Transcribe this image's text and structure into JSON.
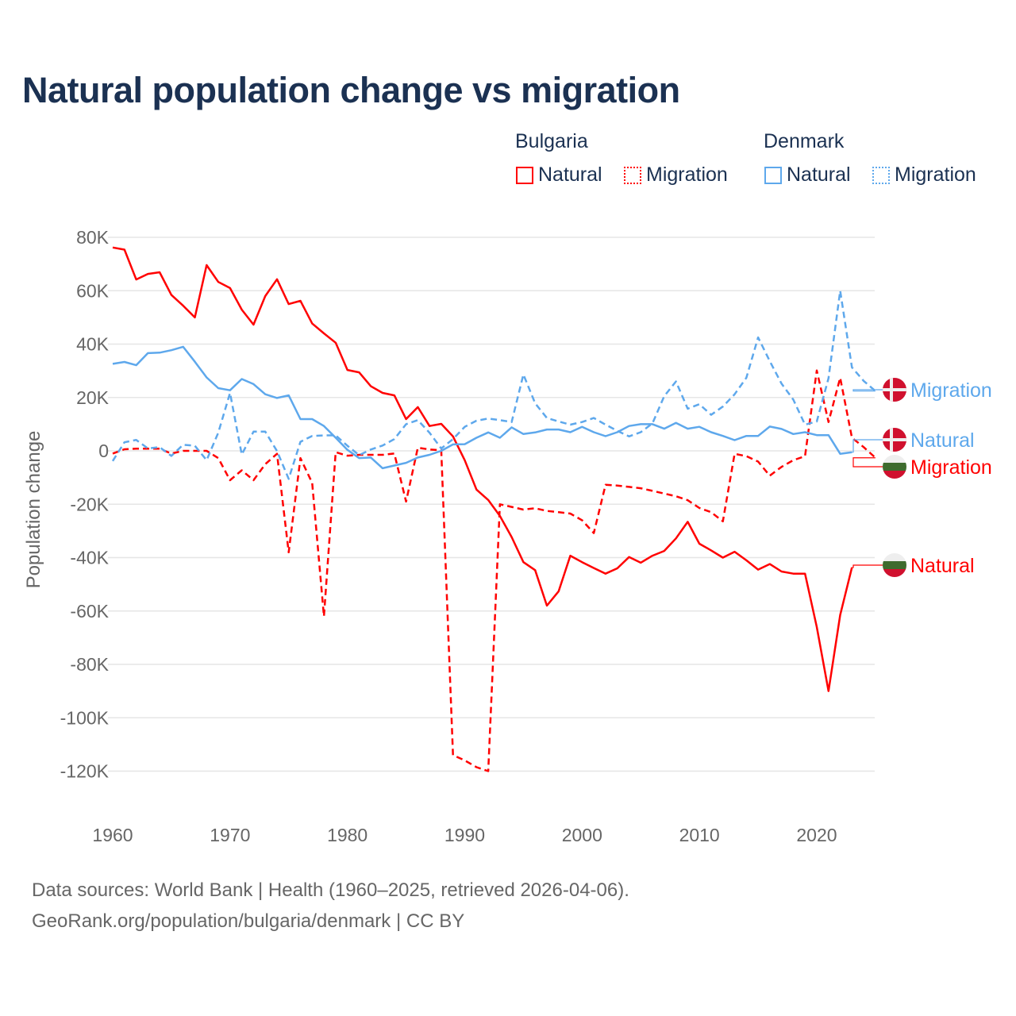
{
  "colors": {
    "bulgaria": "#ff0000",
    "denmark": "#5ea8ec",
    "title": "#1b3152"
  },
  "legend": {
    "bulgaria": {
      "title": "Bulgaria",
      "natural": "Natural",
      "migration": "Migration"
    },
    "denmark": {
      "title": "Denmark",
      "natural": "Natural",
      "migration": "Migration"
    }
  },
  "end_labels": {
    "dk_migration": "Migration",
    "dk_natural": "Natural",
    "bg_migration": "Migration",
    "bg_natural": "Natural"
  },
  "footer": {
    "line1": "Data sources: World Bank | Health (1960–2025, retrieved 2026-04-06).",
    "line2": "GeoRank.org/population/bulgaria/denmark | CC BY"
  },
  "chart_data": {
    "type": "line",
    "title": "Natural population change vs migration",
    "xlabel": "",
    "ylabel": "Population change",
    "xlim": [
      1960,
      2025
    ],
    "ylim": [
      -130000,
      85000
    ],
    "x_ticks": [
      1960,
      1970,
      1980,
      1990,
      2000,
      2010,
      2020
    ],
    "x_tick_labels": [
      "1960",
      "1970",
      "1980",
      "1990",
      "2000",
      "2010",
      "2020"
    ],
    "y_ticks": [
      80000,
      60000,
      40000,
      20000,
      0,
      -20000,
      -40000,
      -60000,
      -80000,
      -100000,
      -120000
    ],
    "y_tick_labels": [
      "80K",
      "60K",
      "40K",
      "20K",
      "0",
      "-20K",
      "-40K",
      "-60K",
      "-80K",
      "-100K",
      "-120K"
    ],
    "grid": true,
    "legend_position": "top-right",
    "series": [
      {
        "name": "Bulgaria Natural",
        "country": "bulgaria",
        "style": "solid",
        "start": 1960,
        "values": [
          76200,
          75400,
          64200,
          66300,
          66900,
          58400,
          54400,
          50000,
          69600,
          63300,
          61000,
          52900,
          47300,
          58000,
          64300,
          55000,
          56200,
          47700,
          44000,
          40500,
          30300,
          29400,
          24200,
          21700,
          20800,
          11900,
          16400,
          9300,
          10100,
          5400,
          -3500,
          -14500,
          -18400,
          -24400,
          -32300,
          -41700,
          -44700,
          -58000,
          -52600,
          -39300,
          -41700,
          -43900,
          -46000,
          -44000,
          -39800,
          -41900,
          -39300,
          -37500,
          -32800,
          -26600,
          -34800,
          -37300,
          -40000,
          -37800,
          -41000,
          -44500,
          -42400,
          -45200,
          -46000,
          -46000,
          -66000,
          -90000,
          -61500,
          -43700
        ]
      },
      {
        "name": "Bulgaria Migration",
        "country": "bulgaria",
        "style": "dashed",
        "start": 1960,
        "values": [
          -1000,
          600,
          800,
          800,
          800,
          -1000,
          0,
          0,
          0,
          -2700,
          -11000,
          -7300,
          -11000,
          -5000,
          -1100,
          -38000,
          -2700,
          -12000,
          -62000,
          -500,
          -1800,
          -1500,
          -1500,
          -1500,
          -1000,
          -19000,
          1200,
          500,
          200,
          -114000,
          -116000,
          -118500,
          -120000,
          -20000,
          -21000,
          -22000,
          -21500,
          -22500,
          -23000,
          -23500,
          -26000,
          -30800,
          -12700,
          -13000,
          -13500,
          -14000,
          -15000,
          -16000,
          -17000,
          -18500,
          -21400,
          -23000,
          -26400,
          -1100,
          -2000,
          -4000,
          -9300,
          -6000,
          -3500,
          -2000,
          30100,
          10800,
          27400,
          4900,
          1400,
          -2600
        ]
      },
      {
        "name": "Denmark Natural",
        "country": "denmark",
        "style": "solid",
        "start": 1960,
        "values": [
          32600,
          33300,
          32100,
          36600,
          36800,
          37700,
          39000,
          33400,
          27500,
          23500,
          22700,
          26900,
          25000,
          21200,
          19800,
          20800,
          11900,
          11900,
          9300,
          4900,
          400,
          -2700,
          -2500,
          -6500,
          -5500,
          -4500,
          -2500,
          -1500,
          0,
          2400,
          2500,
          4900,
          6900,
          4900,
          8800,
          6300,
          6900,
          8000,
          8000,
          7000,
          9000,
          7000,
          5500,
          7000,
          9300,
          10000,
          10000,
          8300,
          10500,
          8300,
          9000,
          7000,
          5600,
          4000,
          5600,
          5600,
          9100,
          8200,
          6300,
          7000,
          5900,
          5900,
          -1100,
          -500
        ]
      },
      {
        "name": "Denmark Migration",
        "country": "denmark",
        "style": "dashed",
        "start": 1960,
        "values": [
          -3800,
          3200,
          4100,
          900,
          1400,
          -1900,
          2300,
          1900,
          -3500,
          6800,
          21700,
          -1400,
          7200,
          7200,
          -100,
          -10500,
          3400,
          5600,
          5800,
          5800,
          1900,
          -1600,
          500,
          2000,
          4400,
          10000,
          11500,
          6800,
          900,
          4400,
          9000,
          11300,
          12100,
          11500,
          10800,
          28600,
          17800,
          12300,
          11000,
          9800,
          10800,
          12300,
          9800,
          7500,
          5400,
          7000,
          10300,
          20500,
          26000,
          15800,
          17500,
          13500,
          16600,
          21200,
          27400,
          42500,
          33600,
          25200,
          19200,
          9800,
          11000,
          27200,
          60000,
          31300,
          26200,
          22400
        ]
      }
    ]
  }
}
